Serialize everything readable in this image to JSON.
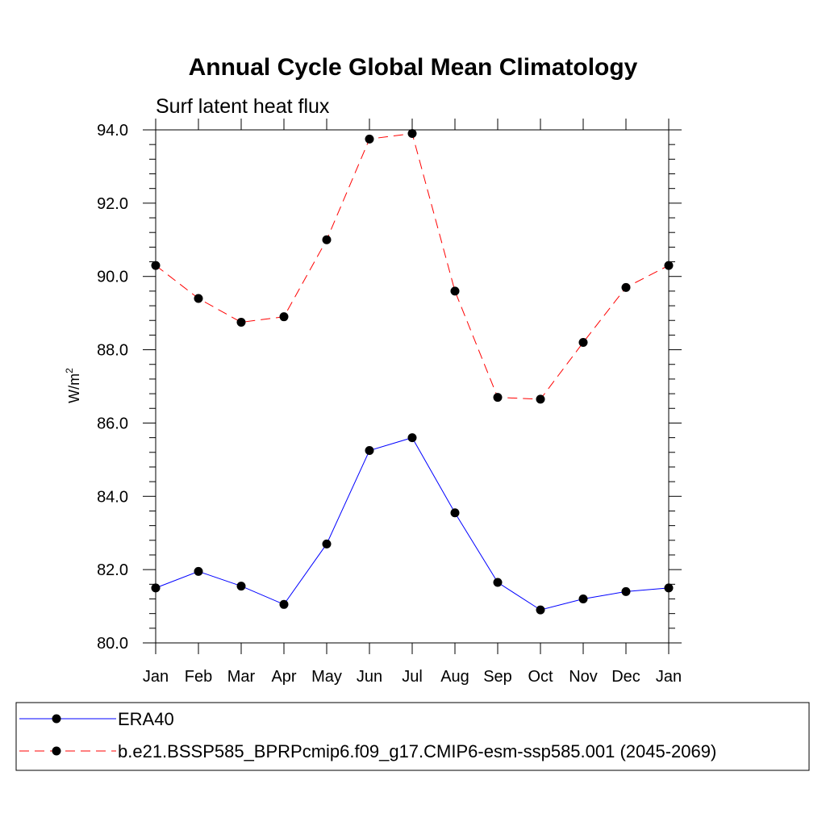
{
  "chart_data": {
    "type": "line",
    "title": "Annual Cycle Global Mean Climatology",
    "subtitle": "Surf latent heat flux",
    "ylabel": {
      "base": "W/m",
      "superscript": "2"
    },
    "categories": [
      "Jan",
      "Feb",
      "Mar",
      "Apr",
      "May",
      "Jun",
      "Jul",
      "Aug",
      "Sep",
      "Oct",
      "Nov",
      "Dec",
      "Jan"
    ],
    "ylim": [
      80.0,
      94.0
    ],
    "yticks": [
      "80.0",
      "82.0",
      "84.0",
      "86.0",
      "88.0",
      "90.0",
      "92.0",
      "94.0"
    ],
    "yminor_step": 0.4,
    "series": [
      {
        "name": "ERA40",
        "color": "#0000ff",
        "line_style": "solid",
        "marker": "filled-circle",
        "values": [
          81.5,
          81.95,
          81.55,
          81.05,
          82.7,
          85.25,
          85.6,
          83.55,
          81.65,
          80.9,
          81.2,
          81.4,
          81.5
        ]
      },
      {
        "name": "b.e21.BSSP585_BPRPcmip6.f09_g17.CMIP6-esm-ssp585.001 (2045-2069)",
        "color": "#ff0000",
        "line_style": "dashed",
        "marker": "filled-circle",
        "values": [
          90.3,
          89.4,
          88.75,
          88.9,
          91.0,
          93.75,
          93.9,
          89.6,
          86.7,
          86.65,
          88.2,
          89.7,
          90.3
        ]
      }
    ]
  }
}
